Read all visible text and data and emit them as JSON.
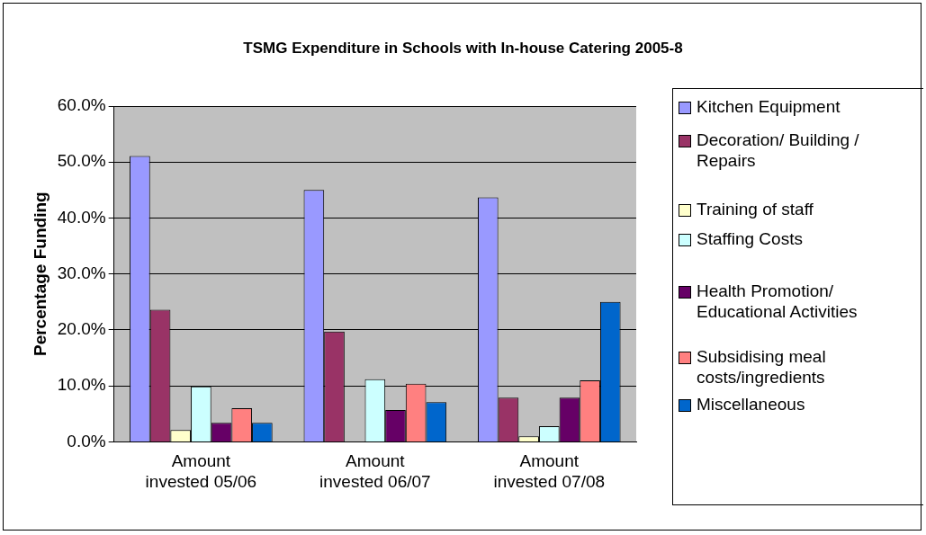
{
  "chart_data": {
    "type": "bar",
    "title": "TSMG Expenditure in Schools with In-house Catering 2005-8",
    "ylabel": "Percentage Funding",
    "categories": [
      "Amount invested 05/06",
      "Amount invested 06/07",
      "Amount invested 07/08"
    ],
    "series": [
      {
        "name": "Kitchen Equipment",
        "color": "#9999ff",
        "values": [
          51.1,
          45.0,
          43.7
        ]
      },
      {
        "name": "Decoration/ Building / Repairs",
        "color": "#993366",
        "values": [
          23.6,
          19.7,
          7.9
        ]
      },
      {
        "name": "Training of staff",
        "color": "#ffffcc",
        "values": [
          2.1,
          0,
          1.0
        ]
      },
      {
        "name": "Staffing Costs",
        "color": "#ccffff",
        "values": [
          9.9,
          11.2,
          2.8
        ]
      },
      {
        "name": "Health Promotion/ Educational Activities",
        "color": "#660066",
        "values": [
          3.4,
          5.7,
          7.9
        ]
      },
      {
        "name": "Subsidising meal costs/ingredients",
        "color": "#ff8080",
        "values": [
          6.0,
          10.4,
          11.0
        ]
      },
      {
        "name": "Miscellaneous",
        "color": "#0066cc",
        "values": [
          3.4,
          7.1,
          25.0
        ]
      }
    ],
    "ylim": [
      0,
      60
    ],
    "yticks": [
      {
        "value": 0,
        "label": "0.0%"
      },
      {
        "value": 10,
        "label": "10.0%"
      },
      {
        "value": 20,
        "label": "20.0%"
      },
      {
        "value": 30,
        "label": "30.0%"
      },
      {
        "value": 40,
        "label": "40.0%"
      },
      {
        "value": 50,
        "label": "50.0%"
      },
      {
        "value": 60,
        "label": "60.0%"
      }
    ],
    "grid": "y",
    "legend": "right"
  }
}
